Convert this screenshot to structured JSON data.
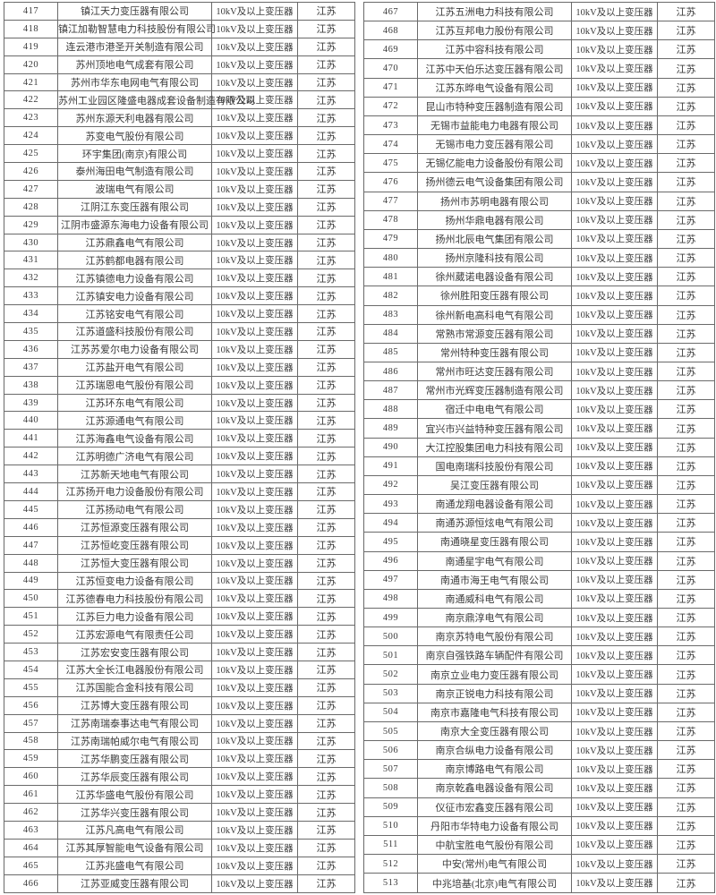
{
  "shared": {
    "product_label": "10kV及以上变压器",
    "province_label": "江苏"
  },
  "colors": {
    "border": "#6a6a6a",
    "text": "#3b3b3b",
    "background": "#ffffff"
  },
  "tables": {
    "left": {
      "rows": [
        {
          "no": "417",
          "company": "镇江天力变压器有限公司"
        },
        {
          "no": "418",
          "company": "镇江加勒智慧电力科技股份有限公司"
        },
        {
          "no": "419",
          "company": "连云港市港圣开关制造有限公司"
        },
        {
          "no": "420",
          "company": "苏州顶地电气成套有限公司"
        },
        {
          "no": "421",
          "company": "苏州市华东电网电气有限公司"
        },
        {
          "no": "422",
          "company": "苏州工业园区隆盛电器成套设备制造有限公司"
        },
        {
          "no": "423",
          "company": "苏州东源天利电器有限公司"
        },
        {
          "no": "424",
          "company": "苏变电气股份有限公司"
        },
        {
          "no": "425",
          "company": "环宇集团(南京)有限公司"
        },
        {
          "no": "426",
          "company": "泰州海田电气制造有限公司"
        },
        {
          "no": "427",
          "company": "波瑞电气有限公司"
        },
        {
          "no": "428",
          "company": "江阴江东变压器有限公司"
        },
        {
          "no": "429",
          "company": "江阴市盛源东海电力设备有限公司"
        },
        {
          "no": "430",
          "company": "江苏鼎鑫电气有限公司"
        },
        {
          "no": "431",
          "company": "江苏鹤都电器有限公司"
        },
        {
          "no": "432",
          "company": "江苏镇德电力设备有限公司"
        },
        {
          "no": "433",
          "company": "江苏镇安电力设备有限公司"
        },
        {
          "no": "434",
          "company": "江苏铭安电气有限公司"
        },
        {
          "no": "435",
          "company": "江苏道盛科技股份有限公司"
        },
        {
          "no": "436",
          "company": "江苏苏爱尔电力设备有限公司"
        },
        {
          "no": "437",
          "company": "江苏盐开电气有限公司"
        },
        {
          "no": "438",
          "company": "江苏瑞恩电气股份有限公司"
        },
        {
          "no": "439",
          "company": "江苏环东电气有限公司"
        },
        {
          "no": "440",
          "company": "江苏源通电气有限公司"
        },
        {
          "no": "441",
          "company": "江苏海鑫电气设备有限公司"
        },
        {
          "no": "442",
          "company": "江苏明德广济电气有限公司"
        },
        {
          "no": "443",
          "company": "江苏新天地电气有限公司"
        },
        {
          "no": "444",
          "company": "江苏扬开电力设备股份有限公司"
        },
        {
          "no": "445",
          "company": "江苏扬动电气有限公司"
        },
        {
          "no": "446",
          "company": "江苏恒源变压器有限公司"
        },
        {
          "no": "447",
          "company": "江苏恒屹变压器有限公司"
        },
        {
          "no": "448",
          "company": "江苏恒大变压器有限公司"
        },
        {
          "no": "449",
          "company": "江苏恒变电力设备有限公司"
        },
        {
          "no": "450",
          "company": "江苏德春电力科技股份有限公司"
        },
        {
          "no": "451",
          "company": "江苏巨力电力设备有限公司"
        },
        {
          "no": "452",
          "company": "江苏宏源电气有限责任公司"
        },
        {
          "no": "453",
          "company": "江苏宏安变压器有限公司"
        },
        {
          "no": "454",
          "company": "江苏大全长江电器股份有限公司"
        },
        {
          "no": "455",
          "company": "江苏国能合金科技有限公司"
        },
        {
          "no": "456",
          "company": "江苏博大变压器有限公司"
        },
        {
          "no": "457",
          "company": "江苏南瑞泰事达电气有限公司"
        },
        {
          "no": "458",
          "company": "江苏南瑞帕威尔电气有限公司"
        },
        {
          "no": "459",
          "company": "江苏华鹏变压器有限公司"
        },
        {
          "no": "460",
          "company": "江苏华辰变压器有限公司"
        },
        {
          "no": "461",
          "company": "江苏华盛电气股份有限公司"
        },
        {
          "no": "462",
          "company": "江苏华兴变压器有限公司"
        },
        {
          "no": "463",
          "company": "江苏凡高电气有限公司"
        },
        {
          "no": "464",
          "company": "江苏其厚智能电气设备有限公司"
        },
        {
          "no": "465",
          "company": "江苏兆盛电气有限公司"
        },
        {
          "no": "466",
          "company": "江苏亚威变压器有限公司"
        }
      ]
    },
    "right": {
      "rows": [
        {
          "no": "467",
          "company": "江苏五洲电力科技有限公司"
        },
        {
          "no": "468",
          "company": "江苏互邦电力股份有限公司"
        },
        {
          "no": "469",
          "company": "江苏中容科技有限公司"
        },
        {
          "no": "470",
          "company": "江苏中天伯乐达变压器有限公司"
        },
        {
          "no": "471",
          "company": "江苏东晔电气设备有限公司"
        },
        {
          "no": "472",
          "company": "昆山市特种变压器制造有限公司"
        },
        {
          "no": "473",
          "company": "无锡市益能电力电器有限公司"
        },
        {
          "no": "474",
          "company": "无锡市电力变压器有限公司"
        },
        {
          "no": "475",
          "company": "无锡亿能电力设备股份有限公司"
        },
        {
          "no": "476",
          "company": "扬州德云电气设备集团有限公司"
        },
        {
          "no": "477",
          "company": "扬州市苏明电器有限公司"
        },
        {
          "no": "478",
          "company": "扬州华鼎电器有限公司"
        },
        {
          "no": "479",
          "company": "扬州北辰电气集团有限公司"
        },
        {
          "no": "480",
          "company": "扬州京隆科技有限公司"
        },
        {
          "no": "481",
          "company": "徐州葳诺电器设备有限公司"
        },
        {
          "no": "482",
          "company": "徐州胜阳变压器有限公司"
        },
        {
          "no": "483",
          "company": "徐州新电高科电气有限公司"
        },
        {
          "no": "484",
          "company": "常熟市常源变压器有限公司"
        },
        {
          "no": "485",
          "company": "常州特种变压器有限公司"
        },
        {
          "no": "486",
          "company": "常州市旺达变压器有限公司"
        },
        {
          "no": "487",
          "company": "常州市光辉变压器制造有限公司"
        },
        {
          "no": "488",
          "company": "宿迁中电电气有限公司"
        },
        {
          "no": "489",
          "company": "宜兴市兴益特种变压器有限公司"
        },
        {
          "no": "490",
          "company": "大江控股集团电力科技有限公司"
        },
        {
          "no": "491",
          "company": "国电南瑞科技股份有限公司"
        },
        {
          "no": "492",
          "company": "吴江变压器有限公司"
        },
        {
          "no": "493",
          "company": "南通龙翔电器设备有限公司"
        },
        {
          "no": "494",
          "company": "南通苏源恒炫电气有限公司"
        },
        {
          "no": "495",
          "company": "南通晓星变压器有限公司"
        },
        {
          "no": "496",
          "company": "南通星宇电气有限公司"
        },
        {
          "no": "497",
          "company": "南通市海王电气有限公司"
        },
        {
          "no": "498",
          "company": "南通威科电气有限公司"
        },
        {
          "no": "499",
          "company": "南京鼎淳电气有限公司"
        },
        {
          "no": "500",
          "company": "南京苏特电气股份有限公司"
        },
        {
          "no": "501",
          "company": "南京自强铁路车辆配件有限公司"
        },
        {
          "no": "502",
          "company": "南京立业电力变压器有限公司"
        },
        {
          "no": "503",
          "company": "南京正锐电力科技有限公司"
        },
        {
          "no": "504",
          "company": "南京市嘉隆电气科技有限公司"
        },
        {
          "no": "505",
          "company": "南京大全变压器有限公司"
        },
        {
          "no": "506",
          "company": "南京合纵电力设备有限公司"
        },
        {
          "no": "507",
          "company": "南京博路电气有限公司"
        },
        {
          "no": "508",
          "company": "南京乾鑫电器设备有限公司"
        },
        {
          "no": "509",
          "company": "仪征市宏鑫变压器有限公司"
        },
        {
          "no": "510",
          "company": "丹阳市华特电力设备有限公司"
        },
        {
          "no": "511",
          "company": "中航宝胜电气股份有限公司"
        },
        {
          "no": "512",
          "company": "中安(常州)电气有限公司"
        },
        {
          "no": "513",
          "company": "中兆培基(北京)电气有限公司"
        }
      ]
    }
  }
}
